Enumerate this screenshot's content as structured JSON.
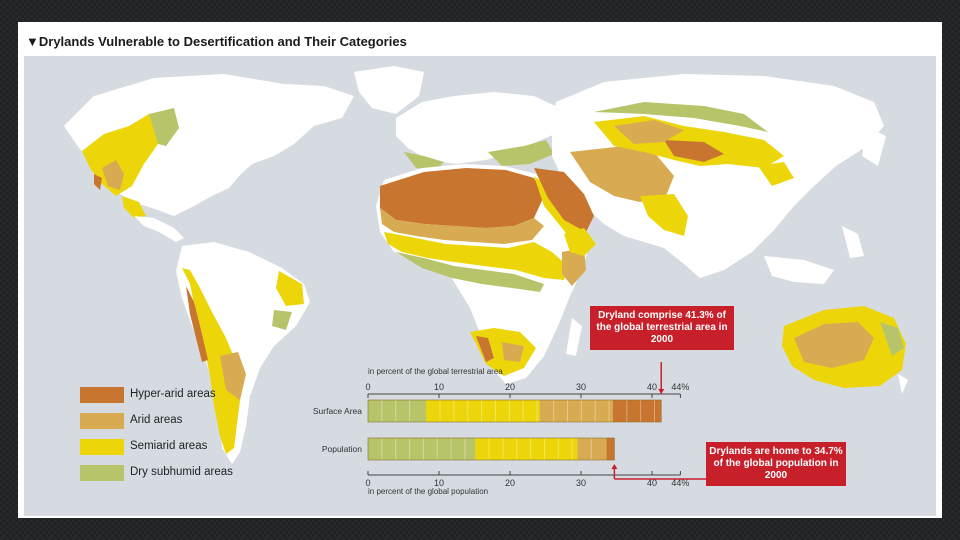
{
  "title": "▼Drylands Vulnerable to Desertification and Their Categories",
  "colors": {
    "ocean": "#d6dbe2",
    "land": "#ffffff",
    "hyper_arid": "#c8762f",
    "arid": "#d8ab52",
    "semiarid": "#ecd60a",
    "dry_subhumid": "#b8c46a",
    "callout": "#c8202a"
  },
  "legend": [
    {
      "label": "Hyper-arid areas",
      "color_key": "hyper_arid"
    },
    {
      "label": "Arid areas",
      "color_key": "arid"
    },
    {
      "label": "Semiarid areas",
      "color_key": "semiarid"
    },
    {
      "label": "Dry subhumid areas",
      "color_key": "dry_subhumid"
    }
  ],
  "chart_data": {
    "type": "bar",
    "orientation": "horizontal-stacked",
    "top_axis_caption": "in percent of the global terrestrial area",
    "bottom_axis_caption": "in percent of the global population",
    "ticks": [
      "0",
      "10",
      "20",
      "30",
      "40",
      "44%"
    ],
    "tick_values": [
      0,
      10,
      20,
      30,
      40,
      44
    ],
    "xlim": [
      0,
      44
    ],
    "rows": [
      {
        "label": "Surface Area",
        "segments": [
          {
            "category": "Dry subhumid areas",
            "value": 8.2
          },
          {
            "category": "Semiarid areas",
            "value": 16.0
          },
          {
            "category": "Arid areas",
            "value": 10.3
          },
          {
            "category": "Hyper-arid areas",
            "value": 6.8
          }
        ],
        "total": 41.3
      },
      {
        "label": "Population",
        "segments": [
          {
            "category": "Dry subhumid areas",
            "value": 15.1
          },
          {
            "category": "Semiarid areas",
            "value": 14.4
          },
          {
            "category": "Arid areas",
            "value": 4.1
          },
          {
            "category": "Hyper-arid areas",
            "value": 1.1
          }
        ],
        "total": 34.7
      }
    ]
  },
  "callouts": {
    "area": "Dryland comprise 41.3% of the global terrestrial area in 2000",
    "population": "Drylands are home to 34.7% of the global population in 2000"
  }
}
